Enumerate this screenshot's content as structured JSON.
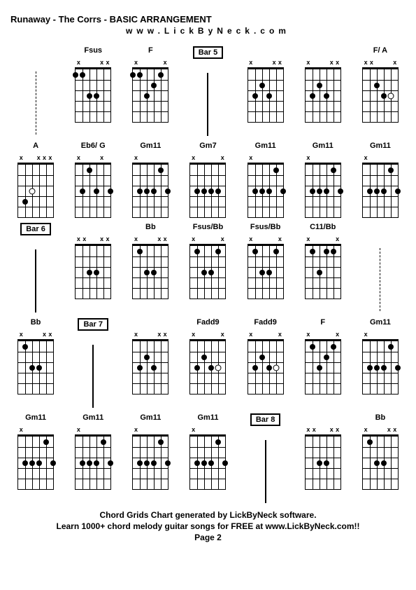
{
  "title": "Runaway - The Corrs  - BASIC ARRANGEMENT",
  "website": "www.LickByNeck.com",
  "footer1": "Chord Grids Chart generated by LickByNeck software.",
  "footer2": "Learn 1000+ chord melody guitar songs for FREE at www.LickByNeck.com!!",
  "page_label": "Page 2",
  "colors": {
    "background": "#ffffff",
    "text": "#000000",
    "lines": "#000000",
    "dots": "#000000"
  },
  "grid_cols": 7,
  "grid_rows": 5,
  "cells": [
    {
      "row": 0,
      "col": 0,
      "type": "dashed"
    },
    {
      "row": 0,
      "col": 1,
      "type": "chord",
      "label": "Fsus",
      "mutes": [
        "x",
        "",
        "",
        "",
        "x",
        "x"
      ],
      "opens": [],
      "dots": [
        [
          0,
          0.5
        ],
        [
          2,
          2.5
        ],
        [
          1,
          0.5
        ],
        [
          3,
          2.5
        ]
      ]
    },
    {
      "row": 0,
      "col": 2,
      "type": "chord",
      "label": "F",
      "mutes": [
        "x",
        "",
        "",
        "",
        "",
        "x"
      ],
      "opens": [],
      "dots": [
        [
          1,
          0.5
        ],
        [
          2,
          2.5
        ],
        [
          3,
          1.5
        ],
        [
          0,
          0.5
        ],
        [
          4,
          0.5
        ]
      ]
    },
    {
      "row": 0,
      "col": 3,
      "type": "bar",
      "label": "Bar 5"
    },
    {
      "row": 0,
      "col": 4,
      "type": "chord",
      "label": "",
      "mutes": [
        "x",
        "",
        "",
        "",
        "x",
        "x"
      ],
      "opens": [],
      "dots": [
        [
          1,
          2.5
        ],
        [
          2,
          1.5
        ],
        [
          3,
          2.5
        ]
      ]
    },
    {
      "row": 0,
      "col": 5,
      "type": "chord",
      "label": "",
      "mutes": [
        "x",
        "",
        "",
        "",
        "x",
        "x"
      ],
      "opens": [],
      "dots": [
        [
          1,
          2.5
        ],
        [
          2,
          1.5
        ],
        [
          3,
          2.5
        ]
      ]
    },
    {
      "row": 0,
      "col": 6,
      "type": "chord",
      "label": "F/ A",
      "mutes": [
        "x",
        "x",
        "",
        "",
        "",
        "x"
      ],
      "opens": [
        4
      ],
      "dots": [
        [
          2,
          1.5
        ],
        [
          3,
          2.5
        ]
      ]
    },
    {
      "row": 1,
      "col": 0,
      "type": "chord",
      "label": "A",
      "mutes": [
        "x",
        "",
        "",
        "x",
        "x",
        "x"
      ],
      "opens": [
        2
      ],
      "dots": [
        [
          1,
          3.5
        ]
      ]
    },
    {
      "row": 1,
      "col": 1,
      "type": "chord",
      "label": "Eb6/ G",
      "mutes": [
        "x",
        "",
        "",
        "",
        "x",
        ""
      ],
      "opens": [],
      "dots": [
        [
          1,
          2.5
        ],
        [
          2,
          0.5
        ],
        [
          3,
          2.5
        ],
        [
          5,
          2.5
        ]
      ]
    },
    {
      "row": 1,
      "col": 2,
      "type": "chord",
      "label": "Gm11",
      "mutes": [
        "x",
        "",
        "",
        "",
        "",
        ""
      ],
      "opens": [],
      "dots": [
        [
          1,
          2.5
        ],
        [
          2,
          2.5
        ],
        [
          3,
          2.5
        ],
        [
          4,
          0.5
        ],
        [
          5,
          2.5
        ]
      ]
    },
    {
      "row": 1,
      "col": 3,
      "type": "chord",
      "label": "Gm7",
      "mutes": [
        "x",
        "",
        "",
        "",
        "",
        "x"
      ],
      "opens": [],
      "dots": [
        [
          1,
          2.5
        ],
        [
          2,
          2.5
        ],
        [
          3,
          2.5
        ],
        [
          4,
          2.5
        ]
      ]
    },
    {
      "row": 1,
      "col": 4,
      "type": "chord",
      "label": "Gm11",
      "mutes": [
        "x",
        "",
        "",
        "",
        "",
        ""
      ],
      "opens": [],
      "dots": [
        [
          1,
          2.5
        ],
        [
          2,
          2.5
        ],
        [
          3,
          2.5
        ],
        [
          4,
          0.5
        ],
        [
          5,
          2.5
        ]
      ]
    },
    {
      "row": 1,
      "col": 5,
      "type": "chord",
      "label": "Gm11",
      "mutes": [
        "x",
        "",
        "",
        "",
        "",
        ""
      ],
      "opens": [],
      "dots": [
        [
          1,
          2.5
        ],
        [
          2,
          2.5
        ],
        [
          3,
          2.5
        ],
        [
          4,
          0.5
        ],
        [
          5,
          2.5
        ]
      ]
    },
    {
      "row": 1,
      "col": 6,
      "type": "chord",
      "label": "Gm11",
      "mutes": [
        "x",
        "",
        "",
        "",
        "",
        ""
      ],
      "opens": [],
      "dots": [
        [
          1,
          2.5
        ],
        [
          2,
          2.5
        ],
        [
          3,
          2.5
        ],
        [
          4,
          0.5
        ],
        [
          5,
          2.5
        ]
      ]
    },
    {
      "row": 2,
      "col": 0,
      "type": "bar",
      "label": "Bar 6"
    },
    {
      "row": 2,
      "col": 1,
      "type": "chord",
      "label": "",
      "mutes": [
        "x",
        "x",
        "",
        "",
        "x",
        "x"
      ],
      "opens": [],
      "dots": [
        [
          2,
          2.5
        ],
        [
          3,
          2.5
        ]
      ]
    },
    {
      "row": 2,
      "col": 2,
      "type": "chord",
      "label": "Bb",
      "mutes": [
        "x",
        "",
        "",
        "",
        "x",
        "x"
      ],
      "opens": [],
      "dots": [
        [
          1,
          0.5
        ],
        [
          2,
          2.5
        ],
        [
          3,
          2.5
        ]
      ]
    },
    {
      "row": 2,
      "col": 3,
      "type": "chord",
      "label": "Fsus/Bb",
      "mutes": [
        "x",
        "",
        "",
        "",
        "",
        "x"
      ],
      "opens": [],
      "dots": [
        [
          1,
          0.5
        ],
        [
          2,
          2.5
        ],
        [
          3,
          2.5
        ],
        [
          4,
          0.5
        ]
      ]
    },
    {
      "row": 2,
      "col": 4,
      "type": "chord",
      "label": "Fsus/Bb",
      "mutes": [
        "x",
        "",
        "",
        "",
        "",
        "x"
      ],
      "opens": [],
      "dots": [
        [
          1,
          0.5
        ],
        [
          2,
          2.5
        ],
        [
          3,
          2.5
        ],
        [
          4,
          0.5
        ]
      ]
    },
    {
      "row": 2,
      "col": 5,
      "type": "chord",
      "label": "C11/Bb",
      "mutes": [
        "x",
        "",
        "",
        "",
        "",
        "x"
      ],
      "opens": [],
      "dots": [
        [
          1,
          0.5
        ],
        [
          2,
          2.5
        ],
        [
          3,
          0.5
        ],
        [
          4,
          0.5
        ]
      ]
    },
    {
      "row": 2,
      "col": 6,
      "type": "dashed"
    },
    {
      "row": 3,
      "col": 0,
      "type": "chord",
      "label": "Bb",
      "mutes": [
        "x",
        "",
        "",
        "",
        "x",
        "x"
      ],
      "opens": [],
      "dots": [
        [
          1,
          0.5
        ],
        [
          2,
          2.5
        ],
        [
          3,
          2.5
        ]
      ]
    },
    {
      "row": 3,
      "col": 1,
      "type": "bar",
      "label": "Bar 7"
    },
    {
      "row": 3,
      "col": 2,
      "type": "chord",
      "label": "",
      "mutes": [
        "x",
        "",
        "",
        "",
        "x",
        "x"
      ],
      "opens": [],
      "dots": [
        [
          1,
          2.5
        ],
        [
          2,
          1.5
        ],
        [
          3,
          2.5
        ]
      ]
    },
    {
      "row": 3,
      "col": 3,
      "type": "chord",
      "label": "Fadd9",
      "mutes": [
        "x",
        "",
        "",
        "",
        "",
        "x"
      ],
      "opens": [
        4
      ],
      "dots": [
        [
          1,
          2.5
        ],
        [
          2,
          1.5
        ],
        [
          3,
          2.5
        ]
      ]
    },
    {
      "row": 3,
      "col": 4,
      "type": "chord",
      "label": "Fadd9",
      "mutes": [
        "x",
        "",
        "",
        "",
        "",
        "x"
      ],
      "opens": [
        4
      ],
      "dots": [
        [
          1,
          2.5
        ],
        [
          2,
          1.5
        ],
        [
          3,
          2.5
        ]
      ]
    },
    {
      "row": 3,
      "col": 5,
      "type": "chord",
      "label": "F",
      "mutes": [
        "x",
        "",
        "",
        "",
        "",
        "x"
      ],
      "opens": [],
      "dots": [
        [
          1,
          0.5
        ],
        [
          2,
          2.5
        ],
        [
          3,
          1.5
        ],
        [
          4,
          0.5
        ]
      ]
    },
    {
      "row": 3,
      "col": 6,
      "type": "chord",
      "label": "Gm11",
      "mutes": [
        "x",
        "",
        "",
        "",
        "",
        ""
      ],
      "opens": [],
      "dots": [
        [
          1,
          2.5
        ],
        [
          2,
          2.5
        ],
        [
          3,
          2.5
        ],
        [
          4,
          0.5
        ],
        [
          5,
          2.5
        ]
      ]
    },
    {
      "row": 4,
      "col": 0,
      "type": "chord",
      "label": "Gm11",
      "mutes": [
        "x",
        "",
        "",
        "",
        "",
        ""
      ],
      "opens": [],
      "dots": [
        [
          1,
          2.5
        ],
        [
          2,
          2.5
        ],
        [
          3,
          2.5
        ],
        [
          4,
          0.5
        ],
        [
          5,
          2.5
        ]
      ]
    },
    {
      "row": 4,
      "col": 1,
      "type": "chord",
      "label": "Gm11",
      "mutes": [
        "x",
        "",
        "",
        "",
        "",
        ""
      ],
      "opens": [],
      "dots": [
        [
          1,
          2.5
        ],
        [
          2,
          2.5
        ],
        [
          3,
          2.5
        ],
        [
          4,
          0.5
        ],
        [
          5,
          2.5
        ]
      ]
    },
    {
      "row": 4,
      "col": 2,
      "type": "chord",
      "label": "Gm11",
      "mutes": [
        "x",
        "",
        "",
        "",
        "",
        ""
      ],
      "opens": [],
      "dots": [
        [
          1,
          2.5
        ],
        [
          2,
          2.5
        ],
        [
          3,
          2.5
        ],
        [
          4,
          0.5
        ],
        [
          5,
          2.5
        ]
      ]
    },
    {
      "row": 4,
      "col": 3,
      "type": "chord",
      "label": "Gm11",
      "mutes": [
        "x",
        "",
        "",
        "",
        "",
        ""
      ],
      "opens": [],
      "dots": [
        [
          1,
          2.5
        ],
        [
          2,
          2.5
        ],
        [
          3,
          2.5
        ],
        [
          4,
          0.5
        ],
        [
          5,
          2.5
        ]
      ]
    },
    {
      "row": 4,
      "col": 4,
      "type": "bar",
      "label": "Bar 8"
    },
    {
      "row": 4,
      "col": 5,
      "type": "chord",
      "label": "",
      "mutes": [
        "x",
        "x",
        "",
        "",
        "x",
        "x"
      ],
      "opens": [],
      "dots": [
        [
          2,
          2.5
        ],
        [
          3,
          2.5
        ]
      ]
    },
    {
      "row": 4,
      "col": 6,
      "type": "chord",
      "label": "Bb",
      "mutes": [
        "x",
        "",
        "",
        "",
        "x",
        "x"
      ],
      "opens": [],
      "dots": [
        [
          1,
          0.5
        ],
        [
          2,
          2.5
        ],
        [
          3,
          2.5
        ]
      ]
    }
  ],
  "fretboard": {
    "width": 50,
    "height": 75,
    "frets": 5,
    "strings": 6
  }
}
